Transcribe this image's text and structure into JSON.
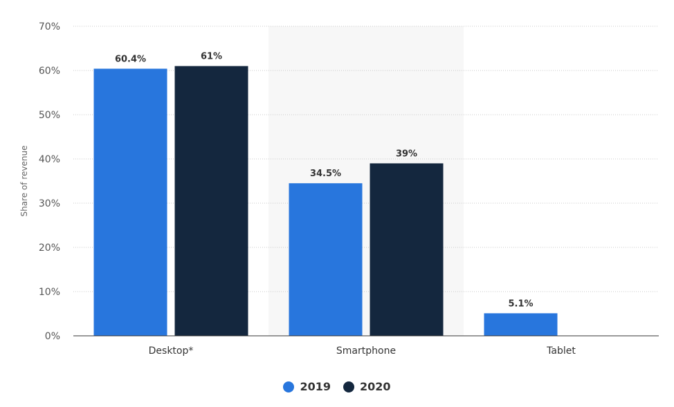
{
  "chart_data": {
    "type": "bar",
    "title": "",
    "xlabel": "",
    "ylabel": "Share of revenue",
    "ylim": [
      0,
      70
    ],
    "yticks": [
      0,
      10,
      20,
      30,
      40,
      50,
      60,
      70
    ],
    "ytick_suffix": "%",
    "categories": [
      "Desktop*",
      "Smartphone",
      "Tablet"
    ],
    "series": [
      {
        "name": "2019",
        "color": "#2876dd",
        "values": [
          60.4,
          34.5,
          5.1
        ],
        "labels": [
          "60.4%",
          "34.5%",
          "5.1%"
        ]
      },
      {
        "name": "2020",
        "color": "#14273e",
        "values": [
          61,
          39,
          null
        ],
        "labels": [
          "61%",
          "39%",
          ""
        ]
      }
    ],
    "grid": true,
    "legend_position": "bottom-center"
  }
}
